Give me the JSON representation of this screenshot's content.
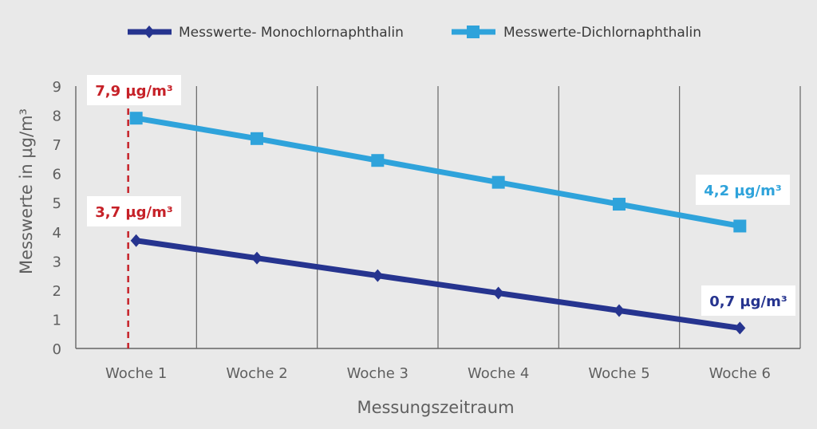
{
  "chart_data": {
    "type": "line",
    "categories": [
      "Woche 1",
      "Woche 2",
      "Woche 3",
      "Woche 4",
      "Woche 5",
      "Woche 6"
    ],
    "series": [
      {
        "name": "Messwerte- Monochlornaphthalin",
        "values": [
          3.7,
          3.1,
          2.5,
          1.9,
          1.3,
          0.7
        ],
        "color": "#26348f",
        "marker": "diamond"
      },
      {
        "name": "Messwerte-Dichlornaphthalin",
        "values": [
          7.9,
          7.2,
          6.45,
          5.7,
          4.95,
          4.2
        ],
        "color": "#2fa3db",
        "marker": "square"
      }
    ],
    "xlabel": "Messungszeitraum",
    "ylabel": "Messwerte in µg/m³",
    "ylim": [
      0,
      9
    ],
    "yticks": [
      "0",
      "1",
      "2",
      "3",
      "4",
      "5",
      "6",
      "7",
      "8",
      "9"
    ],
    "legend_position": "top",
    "grid": "vertical",
    "reference_line": {
      "category": "Woche 1",
      "color": "#c62128",
      "style": "dashed"
    },
    "annotations": [
      {
        "text": "7,9 µg/m³",
        "color": "#c62128"
      },
      {
        "text": "3,7 µg/m³",
        "color": "#c62128"
      },
      {
        "text": "4,2 µg/m³",
        "color": "#2fa3db"
      },
      {
        "text": "0,7 µg/m³",
        "color": "#26348f"
      }
    ]
  }
}
